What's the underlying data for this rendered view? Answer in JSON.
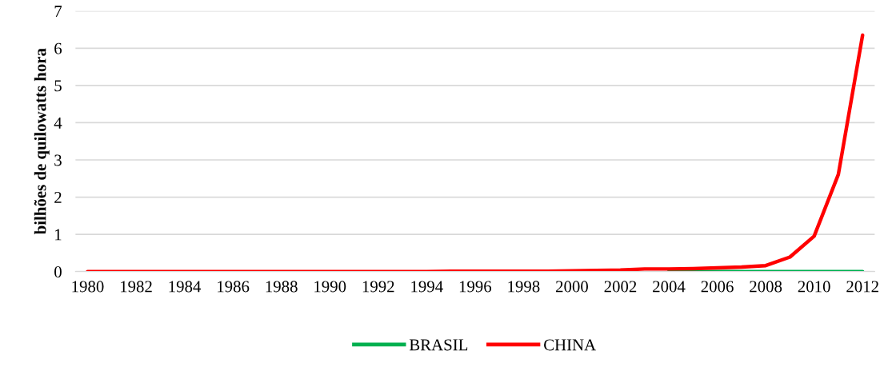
{
  "chart_data": {
    "type": "line",
    "ylabel": "bilhões de quilowatts hora",
    "categories": [
      "1980",
      null,
      "1982",
      null,
      "1984",
      null,
      "1986",
      null,
      "1988",
      null,
      "1990",
      null,
      "1992",
      null,
      "1994",
      null,
      "1996",
      null,
      "1998",
      null,
      "2000",
      null,
      "2002",
      null,
      "2004",
      null,
      "2006",
      null,
      "2008",
      null,
      "2010",
      null,
      "2012"
    ],
    "series": [
      {
        "name": "BRASIL",
        "color": "#00b050",
        "values": [
          null,
          null,
          null,
          null,
          null,
          null,
          null,
          null,
          null,
          null,
          null,
          null,
          null,
          null,
          null,
          null,
          null,
          null,
          null,
          null,
          null,
          null,
          null,
          null,
          0,
          0,
          0,
          0,
          0,
          0,
          0,
          0,
          0
        ]
      },
      {
        "name": "CHINA",
        "color": "#ff0000",
        "values": [
          0,
          0,
          0,
          0,
          0,
          0,
          0,
          0,
          0,
          0,
          0,
          0,
          0,
          0,
          0,
          0.01,
          0.01,
          0.01,
          0.01,
          0.01,
          0.02,
          0.03,
          0.04,
          0.07,
          0.07,
          0.08,
          0.1,
          0.12,
          0.16,
          0.39,
          0.95,
          2.61,
          6.35
        ]
      }
    ],
    "ylim": [
      0,
      7
    ],
    "yticks": [
      0,
      1,
      2,
      3,
      4,
      5,
      6,
      7
    ],
    "grid": "y",
    "legend": "bottom",
    "marker": "none",
    "line_style": "solid"
  }
}
